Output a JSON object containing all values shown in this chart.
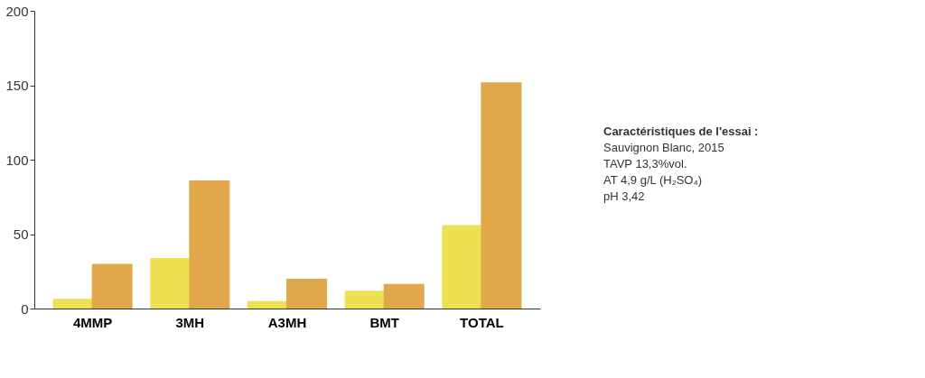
{
  "chart_data": {
    "type": "bar",
    "categories": [
      "4MMP",
      "3MH",
      "A3MH",
      "BMT",
      "TOTAL"
    ],
    "series": [
      {
        "color": "#ede052",
        "values": [
          6.5,
          34,
          5,
          12,
          56
        ]
      },
      {
        "color": "#e0a84a",
        "values": [
          30,
          86,
          20,
          16.5,
          152
        ]
      }
    ],
    "ylim": [
      0,
      200
    ],
    "yticks": [
      0,
      50,
      100,
      150,
      200
    ],
    "grid": false,
    "annotations": [
      "Caractéristiques de l'essai :",
      "Sauvignon Blanc, 2015",
      "TAVP 13,3%vol.",
      "AT 4,9 g/L (H₂SO₄)",
      "pH 3,42"
    ]
  }
}
